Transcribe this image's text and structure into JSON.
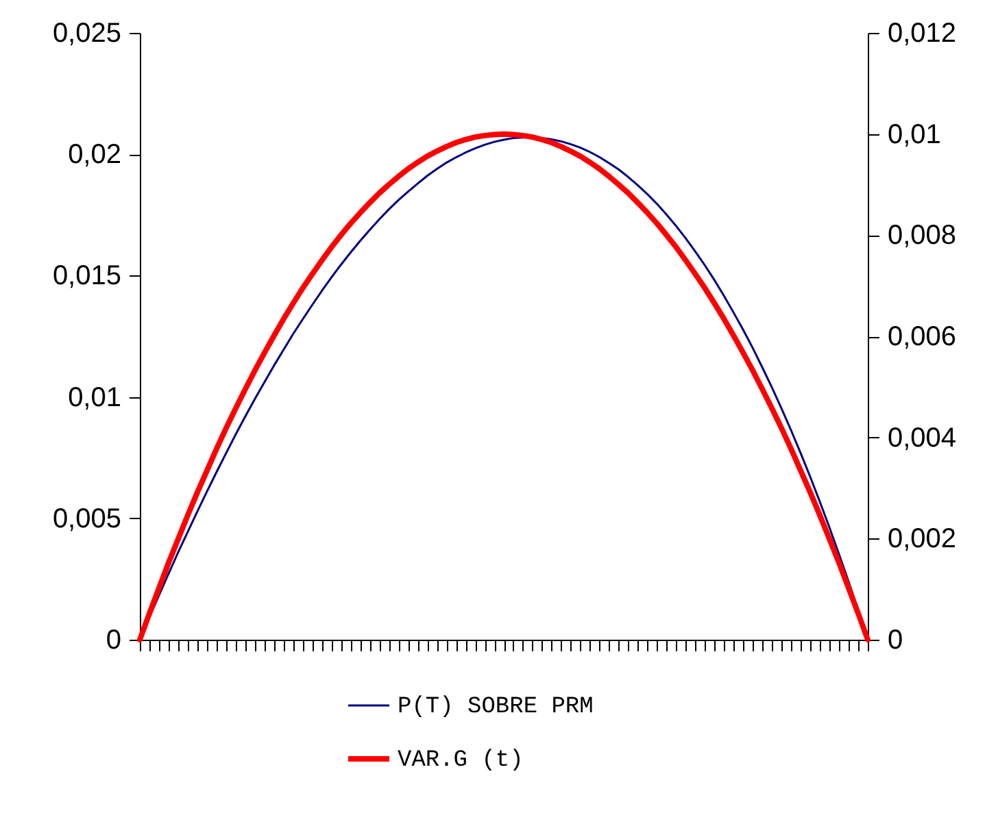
{
  "chart_data": {
    "type": "line",
    "categories": [
      null,
      null,
      null,
      null,
      null,
      null,
      null,
      null,
      null,
      null,
      null,
      null,
      null,
      null,
      null,
      null,
      null,
      null,
      null,
      null,
      null,
      null,
      null,
      null,
      null,
      null,
      null,
      null,
      null,
      null,
      null,
      null,
      null,
      null,
      null,
      null,
      null,
      null,
      null,
      null,
      null,
      null,
      null,
      null,
      null,
      null,
      null,
      null,
      null,
      null,
      null,
      null,
      null,
      null,
      null,
      null,
      null,
      null,
      null,
      null,
      null,
      null,
      null,
      null,
      null,
      null,
      null,
      null,
      null,
      null,
      null,
      null,
      null,
      null,
      null,
      null,
      null
    ],
    "series": [
      {
        "name": "P(T) SOBRE PRM",
        "color": "#000080",
        "values": [
          0,
          0.00092,
          0.00183,
          0.00272,
          0.0036,
          0.00444,
          0.00528,
          0.0061,
          0.0069,
          0.00768,
          0.00845,
          0.00919,
          0.00991,
          0.0106,
          0.01129,
          0.01194,
          0.01259,
          0.0132,
          0.01379,
          0.01437,
          0.01492,
          0.01545,
          0.01595,
          0.01643,
          0.01688,
          0.01732,
          0.01773,
          0.01811,
          0.01846,
          0.01879,
          0.01911,
          0.01939,
          0.01965,
          0.01987,
          0.02007,
          0.02024,
          0.02039,
          0.02051,
          0.0206,
          0.02067,
          0.02069,
          0.0207,
          0.02067,
          0.02061,
          0.02053,
          0.02041,
          0.02027,
          0.02009,
          0.01988,
          0.01963,
          0.01937,
          0.01906,
          0.01872,
          0.01835,
          0.01795,
          0.01751,
          0.01704,
          0.01653,
          0.01599,
          0.01542,
          0.01481,
          0.01416,
          0.01347,
          0.01276,
          0.01201,
          0.01121,
          0.01039,
          0.00952,
          0.00862,
          0.00768,
          0.0067,
          0.00568,
          0.00462,
          0.00352,
          0.00239,
          0.00122,
          0
        ]
      },
      {
        "name": "VAR.G (t)",
        "color": "#ff0000",
        "axis": "y2",
        "values": [
          0,
          0.00052,
          0.00102,
          0.00152,
          0.00199,
          0.00246,
          0.00291,
          0.00334,
          0.00377,
          0.00418,
          0.00457,
          0.00495,
          0.00532,
          0.00567,
          0.00601,
          0.00634,
          0.00665,
          0.00695,
          0.00723,
          0.0075,
          0.00776,
          0.008,
          0.00823,
          0.00844,
          0.00864,
          0.00883,
          0.009,
          0.00916,
          0.00931,
          0.00944,
          0.00956,
          0.00966,
          0.00975,
          0.00983,
          0.00989,
          0.00994,
          0.00997,
          0.00999,
          0.01,
          0.00999,
          0.00997,
          0.00994,
          0.00989,
          0.00983,
          0.00975,
          0.00966,
          0.00956,
          0.00944,
          0.00931,
          0.00916,
          0.009,
          0.00883,
          0.00864,
          0.00844,
          0.00823,
          0.008,
          0.00776,
          0.0075,
          0.00723,
          0.00695,
          0.00665,
          0.00634,
          0.00601,
          0.00567,
          0.00532,
          0.00495,
          0.00457,
          0.00418,
          0.00377,
          0.00334,
          0.00291,
          0.00246,
          0.00199,
          0.00152,
          0.00102,
          0.00052,
          0
        ]
      }
    ],
    "ylim": [
      0,
      0.025
    ],
    "yticks": [
      0,
      {
        "value": 0.005,
        "label": "0,005"
      },
      {
        "value": 0.01,
        "label": "0,01"
      },
      {
        "value": 0.015,
        "label": "0,015"
      },
      {
        "value": 0.02,
        "label": "0,02"
      },
      {
        "value": 0.025,
        "label": "0,025"
      }
    ],
    "y2lim": [
      0,
      0.012
    ],
    "y2ticks": [
      0,
      {
        "value": 0.002,
        "label": "0,002"
      },
      {
        "value": 0.004,
        "label": "0,004"
      },
      {
        "value": 0.006,
        "label": "0,006"
      },
      {
        "value": 0.008,
        "label": "0,008"
      },
      {
        "value": 0.01,
        "label": "0,01"
      },
      {
        "value": 0.012,
        "label": "0,012"
      }
    ],
    "grid": false,
    "legend": "bottom"
  }
}
